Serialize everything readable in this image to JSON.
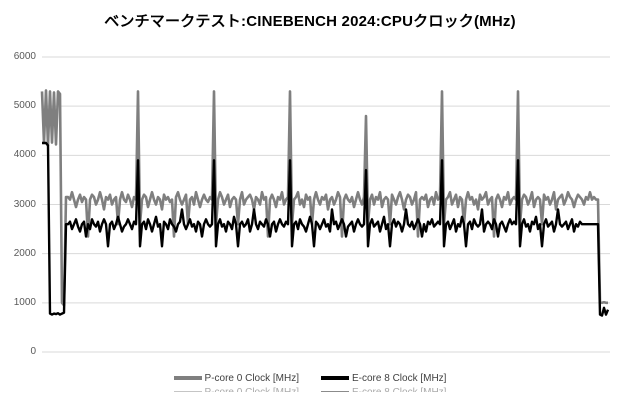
{
  "title": "ベンチマークテスト:CINEBENCH 2024:CPUクロック(MHz)",
  "colors": {
    "pcore_line": "#7f7f7f",
    "ecore_line": "#000000",
    "gridline": "#d9d9d9",
    "tick_label": "#595959",
    "legend_text": "#404040"
  },
  "y_axis": {
    "tick_labels": [
      "0",
      "1000",
      "2000",
      "3000",
      "4000",
      "5000",
      "6000"
    ]
  },
  "legend": {
    "items": [
      {
        "label": "P-core 0 Clock [MHz]",
        "color": "#7f7f7f"
      },
      {
        "label": "E-core 8 Clock [MHz]",
        "color": "#000000"
      }
    ]
  },
  "chart_data": {
    "type": "line",
    "title": "ベンチマークテスト:CINEBENCH 2024:CPUクロック(MHz)",
    "xlabel": "",
    "ylabel": "",
    "ylim": [
      0,
      6000
    ],
    "y_ticks": [
      0,
      1000,
      2000,
      3000,
      4000,
      5000,
      6000
    ],
    "grid": true,
    "legend_position": "bottom",
    "x_tick_labels_visible": false,
    "description": "CPU clock over time during CINEBENCH 2024 run; initial boost ~5300/4200 MHz, periodic spikes every run segment, final idle drop",
    "series": [
      {
        "name": "P-core 0 Clock [MHz]",
        "color": "#7f7f7f",
        "values": [
          5300,
          4250,
          5320,
          4200,
          5300,
          4260,
          5280,
          4220,
          5300,
          5250,
          1000,
          950,
          3150,
          3150,
          3100,
          3250,
          3100,
          2950,
          3100,
          3200,
          3050,
          3150,
          3100,
          2350,
          3100,
          3200,
          3150,
          3000,
          3100,
          3250,
          3100,
          2900,
          3150,
          3100,
          3200,
          3000,
          3100,
          3150,
          2600,
          3100,
          3250,
          3100,
          3050,
          3200,
          3100,
          2950,
          3150,
          3100,
          5300,
          2600,
          3100,
          3200,
          3150,
          2950,
          3100,
          3250,
          3100,
          3000,
          3150,
          3100,
          2900,
          3200,
          3100,
          3150,
          3050,
          3100,
          2350,
          3150,
          3250,
          3100,
          3000,
          3100,
          3200,
          2600,
          3100,
          3150,
          3000,
          3250,
          3100,
          2950,
          3100,
          3200,
          3100,
          3050,
          3150,
          3100,
          5300,
          2600,
          3100,
          3250,
          3150,
          3000,
          3100,
          3200,
          2950,
          3100,
          3150,
          3100,
          2600,
          3100,
          3250,
          3000,
          3100,
          3150,
          3200,
          3100,
          2900,
          3150,
          3100,
          3000,
          3250,
          3100,
          3150,
          2350,
          3100,
          3200,
          3100,
          2950,
          3150,
          3100,
          3250,
          3000,
          3100,
          3150,
          5300,
          2600,
          3100,
          3150,
          3250,
          3000,
          3100,
          2950,
          3200,
          3100,
          3150,
          2600,
          3100,
          3250,
          3100,
          3000,
          3150,
          3100,
          3200,
          2900,
          3100,
          3150,
          3000,
          3100,
          3250,
          3150,
          2350,
          3100,
          3200,
          3100,
          3050,
          3150,
          2950,
          3100,
          3250,
          3100,
          3000,
          3150,
          4800,
          2600,
          3100,
          3200,
          3000,
          3150,
          3100,
          3250,
          2950,
          3100,
          3150,
          3100,
          2600,
          3200,
          3100,
          3000,
          3150,
          3250,
          3100,
          2900,
          3100,
          3200,
          3150,
          3000,
          3100,
          3250,
          2350,
          3100,
          3150,
          3100,
          3200,
          2950,
          3100,
          3150,
          3000,
          3250,
          3100,
          3150,
          5300,
          2600,
          3100,
          3150,
          3250,
          3000,
          3100,
          3200,
          2950,
          3150,
          3100,
          2600,
          3100,
          3250,
          3100,
          3150,
          3000,
          3100,
          2900,
          3200,
          3100,
          3150,
          3250,
          3000,
          3100,
          3150,
          2350,
          3100,
          3200,
          3100,
          2950,
          3150,
          3100,
          3250,
          3000,
          3100,
          3150,
          3100,
          5300,
          2600,
          3100,
          3200,
          3150,
          3000,
          3100,
          3250,
          2950,
          3100,
          3150,
          3100,
          2600,
          3200,
          3100,
          3150,
          3000,
          3100,
          3250,
          2900,
          3100,
          3150,
          3200,
          3000,
          3100,
          3250,
          3150,
          3100,
          2950,
          3100,
          3200,
          3150,
          3100,
          3000,
          3150,
          3100,
          3250,
          3100,
          3150,
          3100,
          3100,
          1020,
          1000,
          1010,
          1000,
          1000,
          null
        ]
      },
      {
        "name": "E-core 8 Clock [MHz]",
        "color": "#000000",
        "values": [
          4250,
          4250,
          4250,
          4200,
          780,
          760,
          780,
          770,
          790,
          760,
          780,
          800,
          2600,
          2600,
          2650,
          2500,
          2600,
          2700,
          2550,
          2450,
          2600,
          2650,
          2350,
          2600,
          2500,
          2700,
          2600,
          2550,
          2650,
          2450,
          2600,
          2700,
          2600,
          2150,
          2600,
          2650,
          2500,
          2600,
          2750,
          2600,
          2450,
          2550,
          2600,
          2700,
          2600,
          2500,
          2650,
          2600,
          3900,
          2150,
          2600,
          2650,
          2500,
          2700,
          2600,
          2450,
          2600,
          2750,
          2550,
          2600,
          2150,
          2650,
          2600,
          2500,
          2700,
          2600,
          2550,
          2450,
          2600,
          2650,
          2900,
          2600,
          2500,
          2600,
          2700,
          2550,
          2600,
          2450,
          2650,
          2600,
          2350,
          2600,
          2700,
          2600,
          2550,
          2600,
          3900,
          2150,
          2600,
          2700,
          2550,
          2600,
          2450,
          2650,
          2600,
          2500,
          2750,
          2600,
          2150,
          2600,
          2650,
          2550,
          2600,
          2700,
          2450,
          2600,
          2900,
          2600,
          2500,
          2650,
          2600,
          2550,
          2700,
          2600,
          2350,
          2600,
          2650,
          2450,
          2600,
          2700,
          2600,
          2550,
          2650,
          2600,
          3900,
          2150,
          2600,
          2650,
          2500,
          2700,
          2600,
          2550,
          2450,
          2600,
          2750,
          2600,
          2150,
          2650,
          2600,
          2500,
          2600,
          2700,
          2550,
          2600,
          2450,
          2900,
          2600,
          2650,
          2500,
          2600,
          2700,
          2600,
          2350,
          2550,
          2600,
          2650,
          2450,
          2600,
          2700,
          2600,
          2550,
          2600,
          3700,
          2150,
          2600,
          2700,
          2550,
          2600,
          2650,
          2450,
          2600,
          2750,
          2500,
          2600,
          2150,
          2600,
          2700,
          2550,
          2650,
          2600,
          2450,
          2600,
          2900,
          2600,
          2550,
          2650,
          2500,
          2600,
          2700,
          2600,
          2350,
          2600,
          2450,
          2650,
          2600,
          2700,
          2550,
          2600,
          2650,
          2600,
          3900,
          2150,
          2600,
          2650,
          2500,
          2600,
          2700,
          2450,
          2600,
          2550,
          2750,
          2600,
          2150,
          2600,
          2650,
          2500,
          2700,
          2600,
          2550,
          2600,
          2900,
          2450,
          2600,
          2650,
          2600,
          2500,
          2700,
          2600,
          2350,
          2600,
          2650,
          2550,
          2450,
          2600,
          2700,
          2600,
          2650,
          2600,
          3900,
          2150,
          2600,
          2700,
          2550,
          2600,
          2450,
          2650,
          2600,
          2750,
          2500,
          2600,
          2150,
          2600,
          2700,
          2550,
          2600,
          2650,
          2450,
          2600,
          2900,
          2600,
          2550,
          2600,
          2650,
          2500,
          2600,
          2700,
          2450,
          2600,
          2550,
          2650,
          2600,
          2600,
          2600,
          2600,
          2600,
          2600,
          2600,
          2600,
          2600,
          760,
          740,
          900,
          760,
          860,
          null
        ]
      }
    ]
  }
}
